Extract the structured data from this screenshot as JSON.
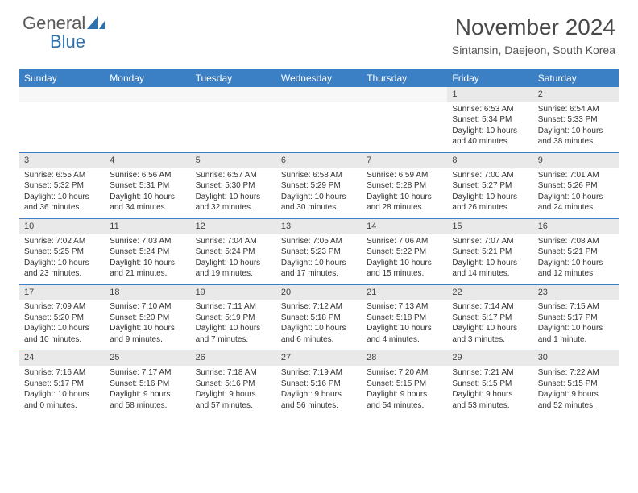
{
  "logo": {
    "word1": "General",
    "word2": "Blue"
  },
  "title": "November 2024",
  "location": "Sintansin, Daejeon, South Korea",
  "colors": {
    "header_bg": "#3b7fc4",
    "header_text": "#ffffff",
    "daynum_bg": "#e9e9e9",
    "row_border": "#3b7fc4",
    "logo_gray": "#5a5a5a",
    "logo_blue": "#2f6fab"
  },
  "day_headers": [
    "Sunday",
    "Monday",
    "Tuesday",
    "Wednesday",
    "Thursday",
    "Friday",
    "Saturday"
  ],
  "weeks": [
    {
      "nums": [
        "",
        "",
        "",
        "",
        "",
        "1",
        "2"
      ],
      "details": [
        "",
        "",
        "",
        "",
        "",
        "Sunrise: 6:53 AM\nSunset: 5:34 PM\nDaylight: 10 hours and 40 minutes.",
        "Sunrise: 6:54 AM\nSunset: 5:33 PM\nDaylight: 10 hours and 38 minutes."
      ]
    },
    {
      "nums": [
        "3",
        "4",
        "5",
        "6",
        "7",
        "8",
        "9"
      ],
      "details": [
        "Sunrise: 6:55 AM\nSunset: 5:32 PM\nDaylight: 10 hours and 36 minutes.",
        "Sunrise: 6:56 AM\nSunset: 5:31 PM\nDaylight: 10 hours and 34 minutes.",
        "Sunrise: 6:57 AM\nSunset: 5:30 PM\nDaylight: 10 hours and 32 minutes.",
        "Sunrise: 6:58 AM\nSunset: 5:29 PM\nDaylight: 10 hours and 30 minutes.",
        "Sunrise: 6:59 AM\nSunset: 5:28 PM\nDaylight: 10 hours and 28 minutes.",
        "Sunrise: 7:00 AM\nSunset: 5:27 PM\nDaylight: 10 hours and 26 minutes.",
        "Sunrise: 7:01 AM\nSunset: 5:26 PM\nDaylight: 10 hours and 24 minutes."
      ]
    },
    {
      "nums": [
        "10",
        "11",
        "12",
        "13",
        "14",
        "15",
        "16"
      ],
      "details": [
        "Sunrise: 7:02 AM\nSunset: 5:25 PM\nDaylight: 10 hours and 23 minutes.",
        "Sunrise: 7:03 AM\nSunset: 5:24 PM\nDaylight: 10 hours and 21 minutes.",
        "Sunrise: 7:04 AM\nSunset: 5:24 PM\nDaylight: 10 hours and 19 minutes.",
        "Sunrise: 7:05 AM\nSunset: 5:23 PM\nDaylight: 10 hours and 17 minutes.",
        "Sunrise: 7:06 AM\nSunset: 5:22 PM\nDaylight: 10 hours and 15 minutes.",
        "Sunrise: 7:07 AM\nSunset: 5:21 PM\nDaylight: 10 hours and 14 minutes.",
        "Sunrise: 7:08 AM\nSunset: 5:21 PM\nDaylight: 10 hours and 12 minutes."
      ]
    },
    {
      "nums": [
        "17",
        "18",
        "19",
        "20",
        "21",
        "22",
        "23"
      ],
      "details": [
        "Sunrise: 7:09 AM\nSunset: 5:20 PM\nDaylight: 10 hours and 10 minutes.",
        "Sunrise: 7:10 AM\nSunset: 5:20 PM\nDaylight: 10 hours and 9 minutes.",
        "Sunrise: 7:11 AM\nSunset: 5:19 PM\nDaylight: 10 hours and 7 minutes.",
        "Sunrise: 7:12 AM\nSunset: 5:18 PM\nDaylight: 10 hours and 6 minutes.",
        "Sunrise: 7:13 AM\nSunset: 5:18 PM\nDaylight: 10 hours and 4 minutes.",
        "Sunrise: 7:14 AM\nSunset: 5:17 PM\nDaylight: 10 hours and 3 minutes.",
        "Sunrise: 7:15 AM\nSunset: 5:17 PM\nDaylight: 10 hours and 1 minute."
      ]
    },
    {
      "nums": [
        "24",
        "25",
        "26",
        "27",
        "28",
        "29",
        "30"
      ],
      "details": [
        "Sunrise: 7:16 AM\nSunset: 5:17 PM\nDaylight: 10 hours and 0 minutes.",
        "Sunrise: 7:17 AM\nSunset: 5:16 PM\nDaylight: 9 hours and 58 minutes.",
        "Sunrise: 7:18 AM\nSunset: 5:16 PM\nDaylight: 9 hours and 57 minutes.",
        "Sunrise: 7:19 AM\nSunset: 5:16 PM\nDaylight: 9 hours and 56 minutes.",
        "Sunrise: 7:20 AM\nSunset: 5:15 PM\nDaylight: 9 hours and 54 minutes.",
        "Sunrise: 7:21 AM\nSunset: 5:15 PM\nDaylight: 9 hours and 53 minutes.",
        "Sunrise: 7:22 AM\nSunset: 5:15 PM\nDaylight: 9 hours and 52 minutes."
      ]
    }
  ]
}
